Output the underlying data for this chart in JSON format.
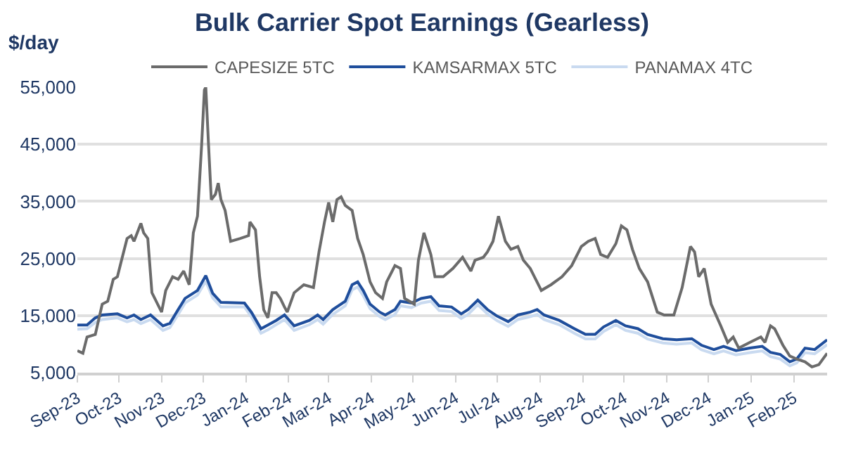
{
  "chart_data": {
    "type": "line",
    "title": "Bulk Carrier Spot Earnings (Gearless)",
    "ylabel": "$/day",
    "xlim": [
      "2023-09-01",
      "2025-02-25"
    ],
    "ylim": [
      5000,
      55000
    ],
    "yticks": [
      {
        "value": 5000,
        "label": "5,000"
      },
      {
        "value": 15000,
        "label": "15,000"
      },
      {
        "value": 25000,
        "label": "25,000"
      },
      {
        "value": 35000,
        "label": "35,000"
      },
      {
        "value": 45000,
        "label": "45,000"
      },
      {
        "value": 55000,
        "label": "55,000"
      }
    ],
    "xticks": [
      {
        "value": "2023-09-01",
        "label": "Sep-23"
      },
      {
        "value": "2023-10-01",
        "label": "Oct-23"
      },
      {
        "value": "2023-11-01",
        "label": "Nov-23"
      },
      {
        "value": "2023-12-01",
        "label": "Dec-23"
      },
      {
        "value": "2024-01-01",
        "label": "Jan-24"
      },
      {
        "value": "2024-02-01",
        "label": "Feb-24"
      },
      {
        "value": "2024-03-01",
        "label": "Mar-24"
      },
      {
        "value": "2024-04-01",
        "label": "Apr-24"
      },
      {
        "value": "2024-05-01",
        "label": "May-24"
      },
      {
        "value": "2024-06-01",
        "label": "Jun-24"
      },
      {
        "value": "2024-07-01",
        "label": "Jul-24"
      },
      {
        "value": "2024-08-01",
        "label": "Aug-24"
      },
      {
        "value": "2024-09-01",
        "label": "Sep-24"
      },
      {
        "value": "2024-10-01",
        "label": "Oct-24"
      },
      {
        "value": "2024-11-01",
        "label": "Nov-24"
      },
      {
        "value": "2024-12-01",
        "label": "Dec-24"
      },
      {
        "value": "2025-01-01",
        "label": "Jan-25"
      },
      {
        "value": "2025-02-01",
        "label": "Feb-25"
      }
    ],
    "grid": "y",
    "legend": "top",
    "marker": "none",
    "line_style": "solid",
    "series": [
      {
        "name": "CAPESIZE 5TC",
        "color": "#6b6b6b",
        "x": [
          "2023-09-01",
          "2023-09-05",
          "2023-09-08",
          "2023-09-14",
          "2023-09-19",
          "2023-09-23",
          "2023-09-27",
          "2023-09-30",
          "2023-10-03",
          "2023-10-07",
          "2023-10-10",
          "2023-10-12",
          "2023-10-17",
          "2023-10-19",
          "2023-10-22",
          "2023-10-25",
          "2023-11-01",
          "2023-11-04",
          "2023-11-09",
          "2023-11-13",
          "2023-11-17",
          "2023-11-21",
          "2023-11-24",
          "2023-11-27",
          "2023-11-30",
          "2023-12-02",
          "2023-12-03",
          "2023-12-05",
          "2023-12-07",
          "2023-12-10",
          "2023-12-12",
          "2023-12-14",
          "2023-12-17",
          "2023-12-21",
          "2023-12-28",
          "2024-01-03",
          "2024-01-04",
          "2024-01-08",
          "2024-01-11",
          "2024-01-14",
          "2024-01-17",
          "2024-01-20",
          "2024-01-23",
          "2024-01-26",
          "2024-01-29",
          "2024-01-31",
          "2024-02-05",
          "2024-02-12",
          "2024-02-19",
          "2024-02-23",
          "2024-02-27",
          "2024-03-01",
          "2024-03-04",
          "2024-03-07",
          "2024-03-10",
          "2024-03-13",
          "2024-03-18",
          "2024-03-22",
          "2024-03-26",
          "2024-03-31",
          "2024-04-04",
          "2024-04-09",
          "2024-04-12",
          "2024-04-18",
          "2024-04-22",
          "2024-04-25",
          "2024-05-02",
          "2024-05-05",
          "2024-05-09",
          "2024-05-14",
          "2024-05-17",
          "2024-05-23",
          "2024-05-30",
          "2024-06-06",
          "2024-06-12",
          "2024-06-15",
          "2024-06-21",
          "2024-06-24",
          "2024-06-28",
          "2024-07-02",
          "2024-07-07",
          "2024-07-11",
          "2024-07-16",
          "2024-07-20",
          "2024-07-25",
          "2024-08-02",
          "2024-08-09",
          "2024-08-17",
          "2024-08-24",
          "2024-08-31",
          "2024-09-05",
          "2024-09-10",
          "2024-09-14",
          "2024-09-19",
          "2024-09-25",
          "2024-09-29",
          "2024-10-03",
          "2024-10-07",
          "2024-10-12",
          "2024-10-18",
          "2024-10-25",
          "2024-10-30",
          "2024-11-06",
          "2024-11-12",
          "2024-11-18",
          "2024-11-21",
          "2024-11-24",
          "2024-11-28",
          "2024-12-03",
          "2024-12-10",
          "2024-12-15",
          "2024-12-19",
          "2024-12-23",
          "2024-12-31",
          "2025-01-08",
          "2025-01-11",
          "2025-01-15",
          "2025-01-18",
          "2025-01-24",
          "2025-01-29",
          "2025-02-03",
          "2025-02-09",
          "2025-02-14",
          "2025-02-19",
          "2025-02-25"
        ],
        "values": [
          8850,
          8400,
          11250,
          11700,
          17000,
          17500,
          21350,
          21800,
          24700,
          28500,
          29000,
          28000,
          31150,
          29500,
          28500,
          19000,
          15600,
          19400,
          21800,
          21350,
          22800,
          20400,
          29500,
          32400,
          44900,
          54500,
          55000,
          44900,
          35300,
          36250,
          38200,
          35300,
          33400,
          28000,
          28500,
          29000,
          31400,
          30000,
          21800,
          16000,
          14600,
          19000,
          19000,
          18000,
          16500,
          15600,
          19000,
          20400,
          19900,
          26150,
          31400,
          34800,
          31400,
          35300,
          35800,
          34300,
          33400,
          28500,
          25700,
          20900,
          19000,
          18000,
          20900,
          23750,
          23250,
          18000,
          17000,
          24700,
          29500,
          25700,
          21800,
          21800,
          23250,
          25200,
          22800,
          24700,
          25200,
          26150,
          28000,
          32400,
          28000,
          26600,
          27100,
          24700,
          23250,
          19400,
          20400,
          21800,
          23750,
          27100,
          28000,
          28500,
          25700,
          25200,
          27600,
          30700,
          30000,
          26600,
          23250,
          20900,
          15600,
          15100,
          15100,
          19900,
          27100,
          26150,
          21800,
          23250,
          17000,
          13200,
          10300,
          11250,
          9300,
          10300,
          11250,
          10300,
          13200,
          12700,
          9800,
          7900,
          7400,
          6900,
          6000,
          6400,
          8400
        ]
      },
      {
        "name": "KAMSARMAX 5TC",
        "color": "#1f4e9c",
        "x": [
          "2023-09-01",
          "2023-09-08",
          "2023-09-14",
          "2023-09-19",
          "2023-09-30",
          "2023-10-07",
          "2023-10-12",
          "2023-10-17",
          "2023-10-24",
          "2023-11-02",
          "2023-11-07",
          "2023-11-13",
          "2023-11-18",
          "2023-11-27",
          "2023-12-03",
          "2023-12-08",
          "2023-12-14",
          "2023-12-31",
          "2024-01-05",
          "2024-01-12",
          "2024-01-17",
          "2024-01-23",
          "2024-01-29",
          "2024-02-05",
          "2024-02-16",
          "2024-02-22",
          "2024-02-26",
          "2024-03-04",
          "2024-03-13",
          "2024-03-18",
          "2024-03-22",
          "2024-03-26",
          "2024-03-31",
          "2024-04-07",
          "2024-04-11",
          "2024-04-18",
          "2024-04-22",
          "2024-04-30",
          "2024-05-07",
          "2024-05-14",
          "2024-05-20",
          "2024-05-29",
          "2024-06-05",
          "2024-06-10",
          "2024-06-17",
          "2024-06-24",
          "2024-07-01",
          "2024-07-09",
          "2024-07-16",
          "2024-07-25",
          "2024-07-30",
          "2024-08-04",
          "2024-08-15",
          "2024-08-26",
          "2024-09-03",
          "2024-09-10",
          "2024-09-16",
          "2024-09-25",
          "2024-10-02",
          "2024-10-11",
          "2024-10-18",
          "2024-10-29",
          "2024-11-08",
          "2024-11-19",
          "2024-11-26",
          "2024-12-05",
          "2024-12-12",
          "2024-12-21",
          "2024-12-31",
          "2025-01-09",
          "2025-01-15",
          "2025-01-22",
          "2025-01-29",
          "2025-02-03",
          "2025-02-09",
          "2025-02-16",
          "2025-02-25"
        ],
        "values": [
          13350,
          13350,
          14600,
          15100,
          15300,
          14600,
          15100,
          14300,
          15100,
          13200,
          13650,
          16050,
          18000,
          19400,
          22000,
          18900,
          17300,
          17200,
          15600,
          12700,
          13350,
          14150,
          15100,
          13200,
          14150,
          15100,
          14300,
          16050,
          17500,
          20400,
          20900,
          19400,
          17000,
          15600,
          15100,
          16050,
          17500,
          17200,
          18000,
          18300,
          16700,
          16500,
          15300,
          16050,
          17700,
          16050,
          14900,
          13950,
          15100,
          15600,
          16050,
          15100,
          14150,
          12700,
          11700,
          11700,
          13000,
          14150,
          13200,
          12700,
          11700,
          10950,
          10750,
          10950,
          9800,
          9050,
          9600,
          8850,
          9300,
          9600,
          8550,
          8200,
          6900,
          7400,
          9300,
          9050,
          10750
        ]
      },
      {
        "name": "PANAMAX 4TC",
        "color": "#c9daf0",
        "x": [
          "2023-09-01",
          "2023-09-08",
          "2023-09-14",
          "2023-09-19",
          "2023-09-30",
          "2023-10-07",
          "2023-10-12",
          "2023-10-17",
          "2023-10-24",
          "2023-11-02",
          "2023-11-07",
          "2023-11-13",
          "2023-11-18",
          "2023-11-27",
          "2023-12-03",
          "2023-12-08",
          "2023-12-14",
          "2023-12-31",
          "2024-01-05",
          "2024-01-12",
          "2024-01-17",
          "2024-01-23",
          "2024-01-29",
          "2024-02-05",
          "2024-02-16",
          "2024-02-22",
          "2024-02-26",
          "2024-03-04",
          "2024-03-13",
          "2024-03-18",
          "2024-03-22",
          "2024-03-26",
          "2024-03-31",
          "2024-04-07",
          "2024-04-11",
          "2024-04-18",
          "2024-04-22",
          "2024-04-30",
          "2024-05-07",
          "2024-05-14",
          "2024-05-20",
          "2024-05-29",
          "2024-06-05",
          "2024-06-10",
          "2024-06-17",
          "2024-06-24",
          "2024-07-01",
          "2024-07-09",
          "2024-07-16",
          "2024-07-25",
          "2024-07-30",
          "2024-08-04",
          "2024-08-15",
          "2024-08-26",
          "2024-09-03",
          "2024-09-10",
          "2024-09-16",
          "2024-09-25",
          "2024-10-02",
          "2024-10-11",
          "2024-10-18",
          "2024-10-29",
          "2024-11-08",
          "2024-11-19",
          "2024-11-26",
          "2024-12-05",
          "2024-12-12",
          "2024-12-21",
          "2024-12-31",
          "2025-01-09",
          "2025-01-15",
          "2025-01-22",
          "2025-01-29",
          "2025-02-03",
          "2025-02-09",
          "2025-02-16",
          "2025-02-25"
        ],
        "values": [
          12600,
          12700,
          13800,
          14300,
          14600,
          13900,
          14300,
          13600,
          14300,
          12400,
          12900,
          15200,
          17200,
          18600,
          21000,
          18100,
          16500,
          16500,
          14800,
          11900,
          12500,
          13400,
          14300,
          12400,
          13400,
          14300,
          13500,
          15200,
          16700,
          19500,
          20000,
          18500,
          16200,
          14800,
          14300,
          15200,
          16700,
          16400,
          17200,
          17500,
          15900,
          15700,
          14500,
          15200,
          16900,
          15300,
          14100,
          13100,
          14300,
          14800,
          15200,
          14300,
          13400,
          11900,
          10900,
          10900,
          12200,
          13400,
          12400,
          11900,
          10900,
          10200,
          10000,
          10200,
          9000,
          8300,
          8800,
          8100,
          8500,
          8800,
          7800,
          7400,
          6200,
          6700,
          8500,
          8300,
          9900
        ]
      }
    ]
  }
}
